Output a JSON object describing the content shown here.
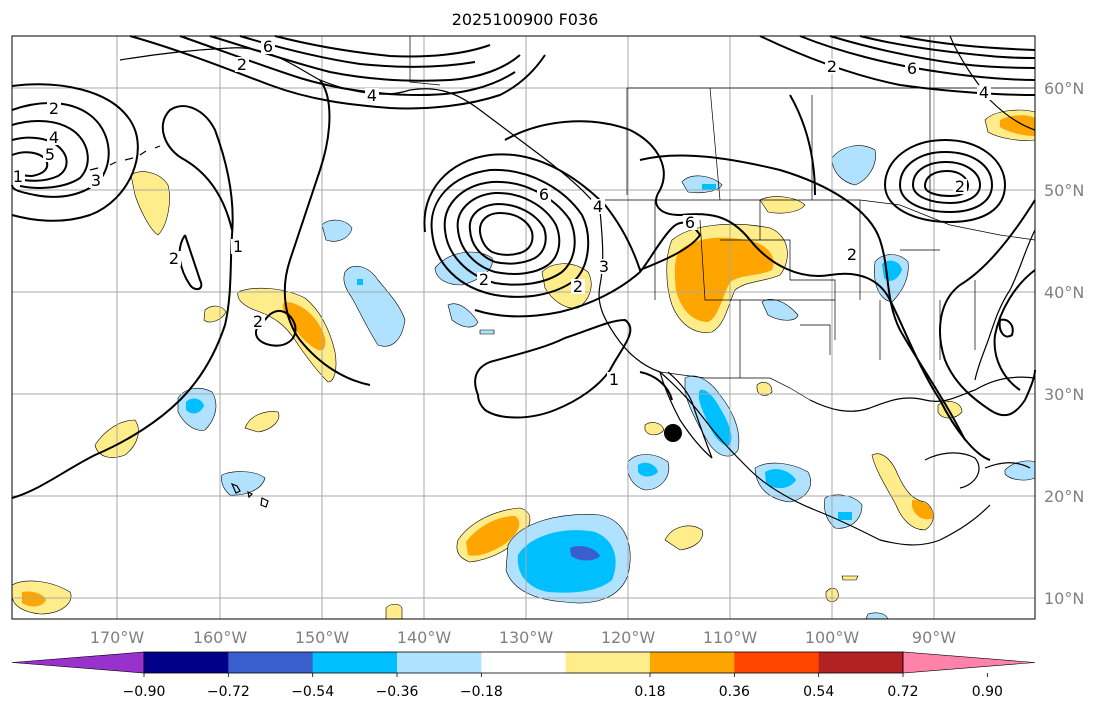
{
  "title": "2025100900 F036",
  "map": {
    "region": "North Pacific / North America",
    "marker": "filled black circle"
  },
  "lon_labels": [
    "170°W",
    "160°W",
    "150°W",
    "140°W",
    "130°W",
    "120°W",
    "110°W",
    "100°W",
    "90°W"
  ],
  "lat_labels": [
    "60°N",
    "50°N",
    "40°N",
    "30°N",
    "20°N",
    "10°N"
  ],
  "contour_labels": [
    "6",
    "2",
    "4",
    "2",
    "4",
    "5",
    "3",
    "2",
    "1",
    "2",
    "6",
    "4",
    "3",
    "2",
    "1",
    "6",
    "2",
    "4",
    "2",
    "6",
    "2",
    "2",
    "1"
  ],
  "colorbar": {
    "ticks": [
      "−0.90",
      "−0.72",
      "−0.54",
      "−0.36",
      "−0.18",
      "0.18",
      "0.36",
      "0.54",
      "0.72",
      "0.90"
    ],
    "colors": [
      "#9932cc",
      "#00008b",
      "#3a5fcd",
      "#00bfff",
      "#b0e2ff",
      "#ffffff",
      "#ffec8b",
      "#ffa500",
      "#ff4500",
      "#b22222",
      "#ff82ab"
    ]
  }
}
